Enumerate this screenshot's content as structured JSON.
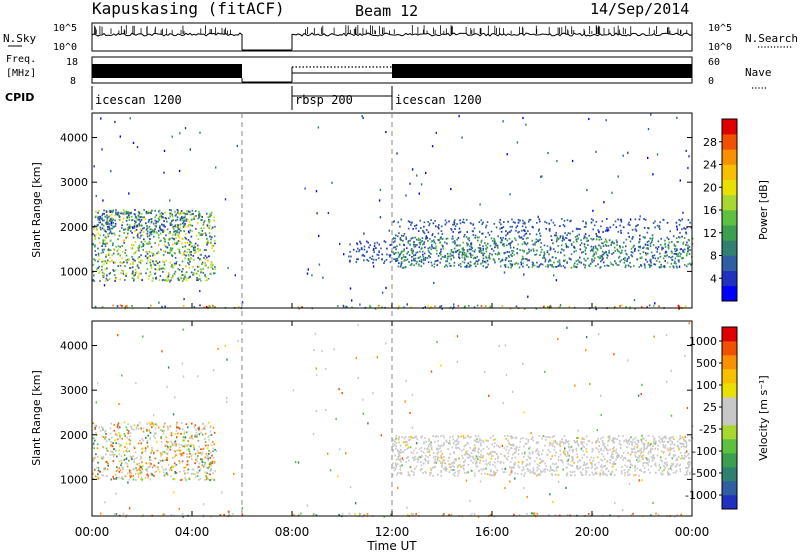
{
  "header": {
    "station": "Kapuskasing (fitACF)",
    "beam": "Beam 12",
    "date": "14/Sep/2014"
  },
  "nsky_panel": {
    "left_label": "N.Sky",
    "right_label": "N.Search",
    "right_legend_style": "dotted",
    "left_ticks": [
      "10^5",
      "10^0"
    ],
    "right_ticks": [
      "10^5",
      "10^0"
    ]
  },
  "freq_panel": {
    "left_label_line1": "Freq.",
    "left_label_line2": "[MHz]",
    "left_ticks": [
      "18",
      "8"
    ],
    "right_label": "Nave",
    "right_legend_style": "dotted",
    "right_ticks": [
      "60",
      "0"
    ]
  },
  "cpid": {
    "label": "CPID",
    "segments": [
      {
        "start_hr": 0,
        "end_hr": 8,
        "name": "icescan 1200"
      },
      {
        "start_hr": 8,
        "end_hr": 12,
        "name": "rbsp 200"
      },
      {
        "start_hr": 12,
        "end_hr": 24,
        "name": "icescan 1200"
      }
    ]
  },
  "gap": {
    "start_hr": 6.0,
    "end_hr": 8.0
  },
  "chart_data": [
    {
      "type": "heatmap",
      "panel": "power",
      "ylabel": "Slant Range [km]",
      "ylim": [
        180,
        4550
      ],
      "yticks": [
        1000,
        2000,
        3000,
        4000
      ],
      "xlabel": "",
      "xlim": [
        0,
        24
      ],
      "colorbar": {
        "label": "Power [dB]",
        "ticks": [
          "4",
          "8",
          "12",
          "16",
          "20",
          "24",
          "28"
        ],
        "tick_values": [
          4,
          8,
          12,
          16,
          20,
          24,
          28
        ],
        "range": [
          0,
          32
        ],
        "colors": [
          "#0000ff",
          "#2030c0",
          "#2f5fa0",
          "#2f8070",
          "#3aa050",
          "#5cc040",
          "#a8d830",
          "#e8e000",
          "#f8c000",
          "#f89000",
          "#f05000",
          "#e00000"
        ]
      },
      "scatter_regions": [
        {
          "t0": 0.0,
          "t1": 4.9,
          "r0": 800,
          "r1": 2400,
          "value_range": [
            4,
            22
          ],
          "density": 0.55
        },
        {
          "t0": 0.1,
          "t1": 3.8,
          "r0": 1900,
          "r1": 2400,
          "value_range": [
            4,
            10
          ],
          "density": 0.4
        },
        {
          "t0": 10.2,
          "t1": 12.0,
          "r0": 1200,
          "r1": 1700,
          "value_range": [
            4,
            8
          ],
          "density": 0.4
        },
        {
          "t0": 12.0,
          "t1": 24.0,
          "r0": 1100,
          "r1": 1800,
          "value_range": [
            4,
            14
          ],
          "density": 0.6
        },
        {
          "t0": 12.0,
          "t1": 24.0,
          "r0": 1800,
          "r1": 2200,
          "value_range": [
            4,
            8
          ],
          "density": 0.3
        },
        {
          "t0": 0.0,
          "t1": 24.0,
          "r0": 180,
          "r1": 260,
          "value_range": [
            4,
            30
          ],
          "density": 0.35
        }
      ]
    },
    {
      "type": "heatmap",
      "panel": "velocity",
      "ylabel": "Slant Range [km]",
      "ylim": [
        180,
        4550
      ],
      "yticks": [
        1000,
        2000,
        3000,
        4000
      ],
      "xlabel": "Time UT",
      "xlim": [
        0,
        24
      ],
      "xticks": [
        "00:00",
        "04:00",
        "08:00",
        "12:00",
        "16:00",
        "20:00",
        "00:00"
      ],
      "xtick_values": [
        0,
        4,
        8,
        12,
        16,
        20,
        24
      ],
      "colorbar": {
        "label": "Velocity [m s⁻¹]",
        "ticks": [
          "1000",
          "500",
          "100",
          "25",
          "-25",
          "-100",
          "-500",
          "-1000"
        ],
        "colors": [
          "#2030c0",
          "#2f5fa0",
          "#2f8070",
          "#3aa050",
          "#5cc040",
          "#a8d830",
          "#c8c8c8",
          "#c8c8c8",
          "#e8e000",
          "#f8c000",
          "#f89000",
          "#f05000",
          "#e00000"
        ]
      },
      "scatter_regions": [
        {
          "t0": 0.0,
          "t1": 4.9,
          "r0": 1000,
          "r1": 2300,
          "value_kind": "mixed",
          "density": 0.5
        },
        {
          "t0": 12.0,
          "t1": 24.0,
          "r0": 1100,
          "r1": 2000,
          "value_kind": "gray",
          "density": 0.6
        },
        {
          "t0": 0.0,
          "t1": 24.0,
          "r0": 180,
          "r1": 260,
          "value_kind": "mixed",
          "density": 0.3
        }
      ]
    }
  ]
}
